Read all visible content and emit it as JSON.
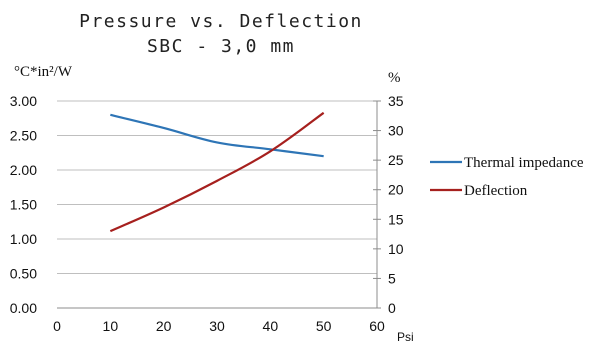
{
  "chart_data": {
    "type": "line",
    "title": "Pressure vs. Deflection",
    "subtitle": "SBC - 3,0 mm",
    "xunit": "Psi",
    "y_left_unit": "°C*in²/W",
    "y_right_unit": "%",
    "x_ticks": [
      0,
      10,
      20,
      30,
      40,
      50,
      60
    ],
    "y_left_ticks": [
      "0.00",
      "0.50",
      "1.00",
      "1.50",
      "2.00",
      "2.50",
      "3.00"
    ],
    "y_right_ticks": [
      "0",
      "5",
      "10",
      "15",
      "20",
      "25",
      "30",
      "35"
    ],
    "xlim": [
      0,
      60
    ],
    "y_left_lim": [
      0,
      3
    ],
    "y_right_lim": [
      0,
      35
    ],
    "grid": true,
    "legend": "right",
    "series": [
      {
        "name": "Thermal impedance",
        "axis": "left",
        "color": "#2e75b6",
        "x": [
          10,
          20,
          30,
          40,
          50
        ],
        "values": [
          2.8,
          2.61,
          2.4,
          2.3,
          2.2
        ]
      },
      {
        "name": "Deflection",
        "axis": "right",
        "color": "#a6201e",
        "x": [
          10,
          20,
          30,
          40,
          50
        ],
        "values": [
          13,
          17,
          21.5,
          26.5,
          33
        ]
      }
    ]
  }
}
